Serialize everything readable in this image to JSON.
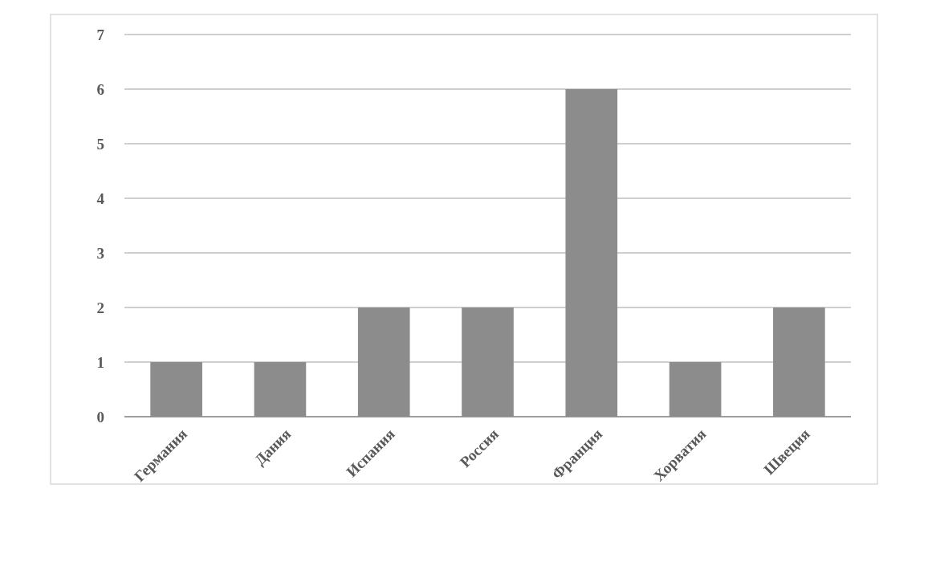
{
  "chart_data": {
    "type": "bar",
    "categories": [
      "Германия",
      "Дания",
      "Испания",
      "Россия",
      "Франция",
      "Хорватия",
      "Швеция"
    ],
    "values": [
      1,
      1,
      2,
      2,
      6,
      1,
      2
    ],
    "color": "#8c8c8c",
    "ylim": [
      0,
      7
    ],
    "yticks": [
      0,
      1,
      2,
      3,
      4,
      5,
      6,
      7
    ],
    "grid": "y"
  }
}
